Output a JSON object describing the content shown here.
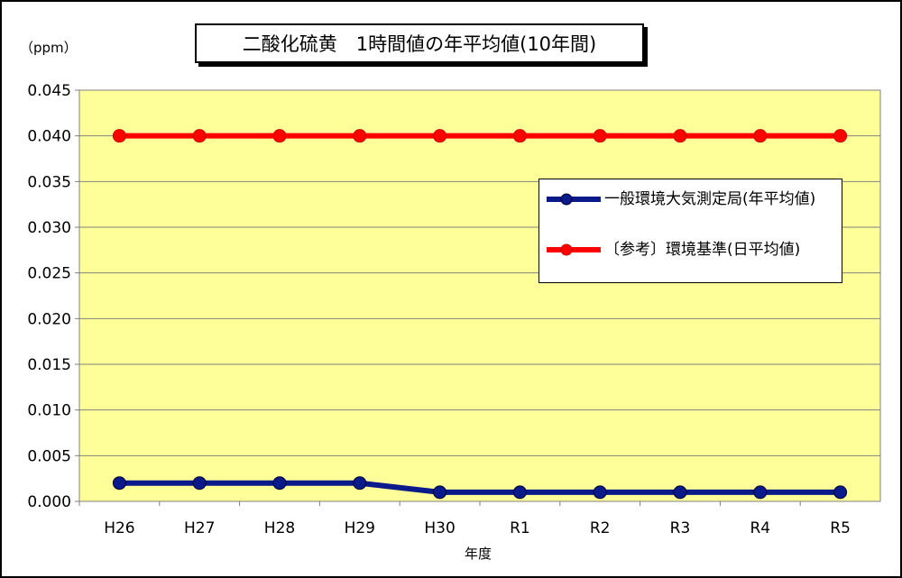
{
  "chart_data": {
    "type": "line",
    "title": "二酸化硫黄　1時間値の年平均値(10年間)",
    "ylabel": "（ppm）",
    "xlabel": "年度",
    "categories": [
      "H26",
      "H27",
      "H28",
      "H29",
      "H30",
      "R1",
      "R2",
      "R3",
      "R4",
      "R5"
    ],
    "ylim": [
      0,
      0.045
    ],
    "yticks": [
      "0.000",
      "0.005",
      "0.010",
      "0.015",
      "0.020",
      "0.025",
      "0.030",
      "0.035",
      "0.040",
      "0.045"
    ],
    "grid": true,
    "legend_position": "right",
    "series": [
      {
        "name": "一般環境大気測定局(年平均値)",
        "color": "#0a1a8a",
        "values": [
          0.002,
          0.002,
          0.002,
          0.002,
          0.001,
          0.001,
          0.001,
          0.001,
          0.001,
          0.001
        ]
      },
      {
        "name": "〔参考〕環境基準(日平均値)",
        "color": "#ff0000",
        "values": [
          0.04,
          0.04,
          0.04,
          0.04,
          0.04,
          0.04,
          0.04,
          0.04,
          0.04,
          0.04
        ]
      }
    ],
    "plot_background": "#ffff99"
  }
}
